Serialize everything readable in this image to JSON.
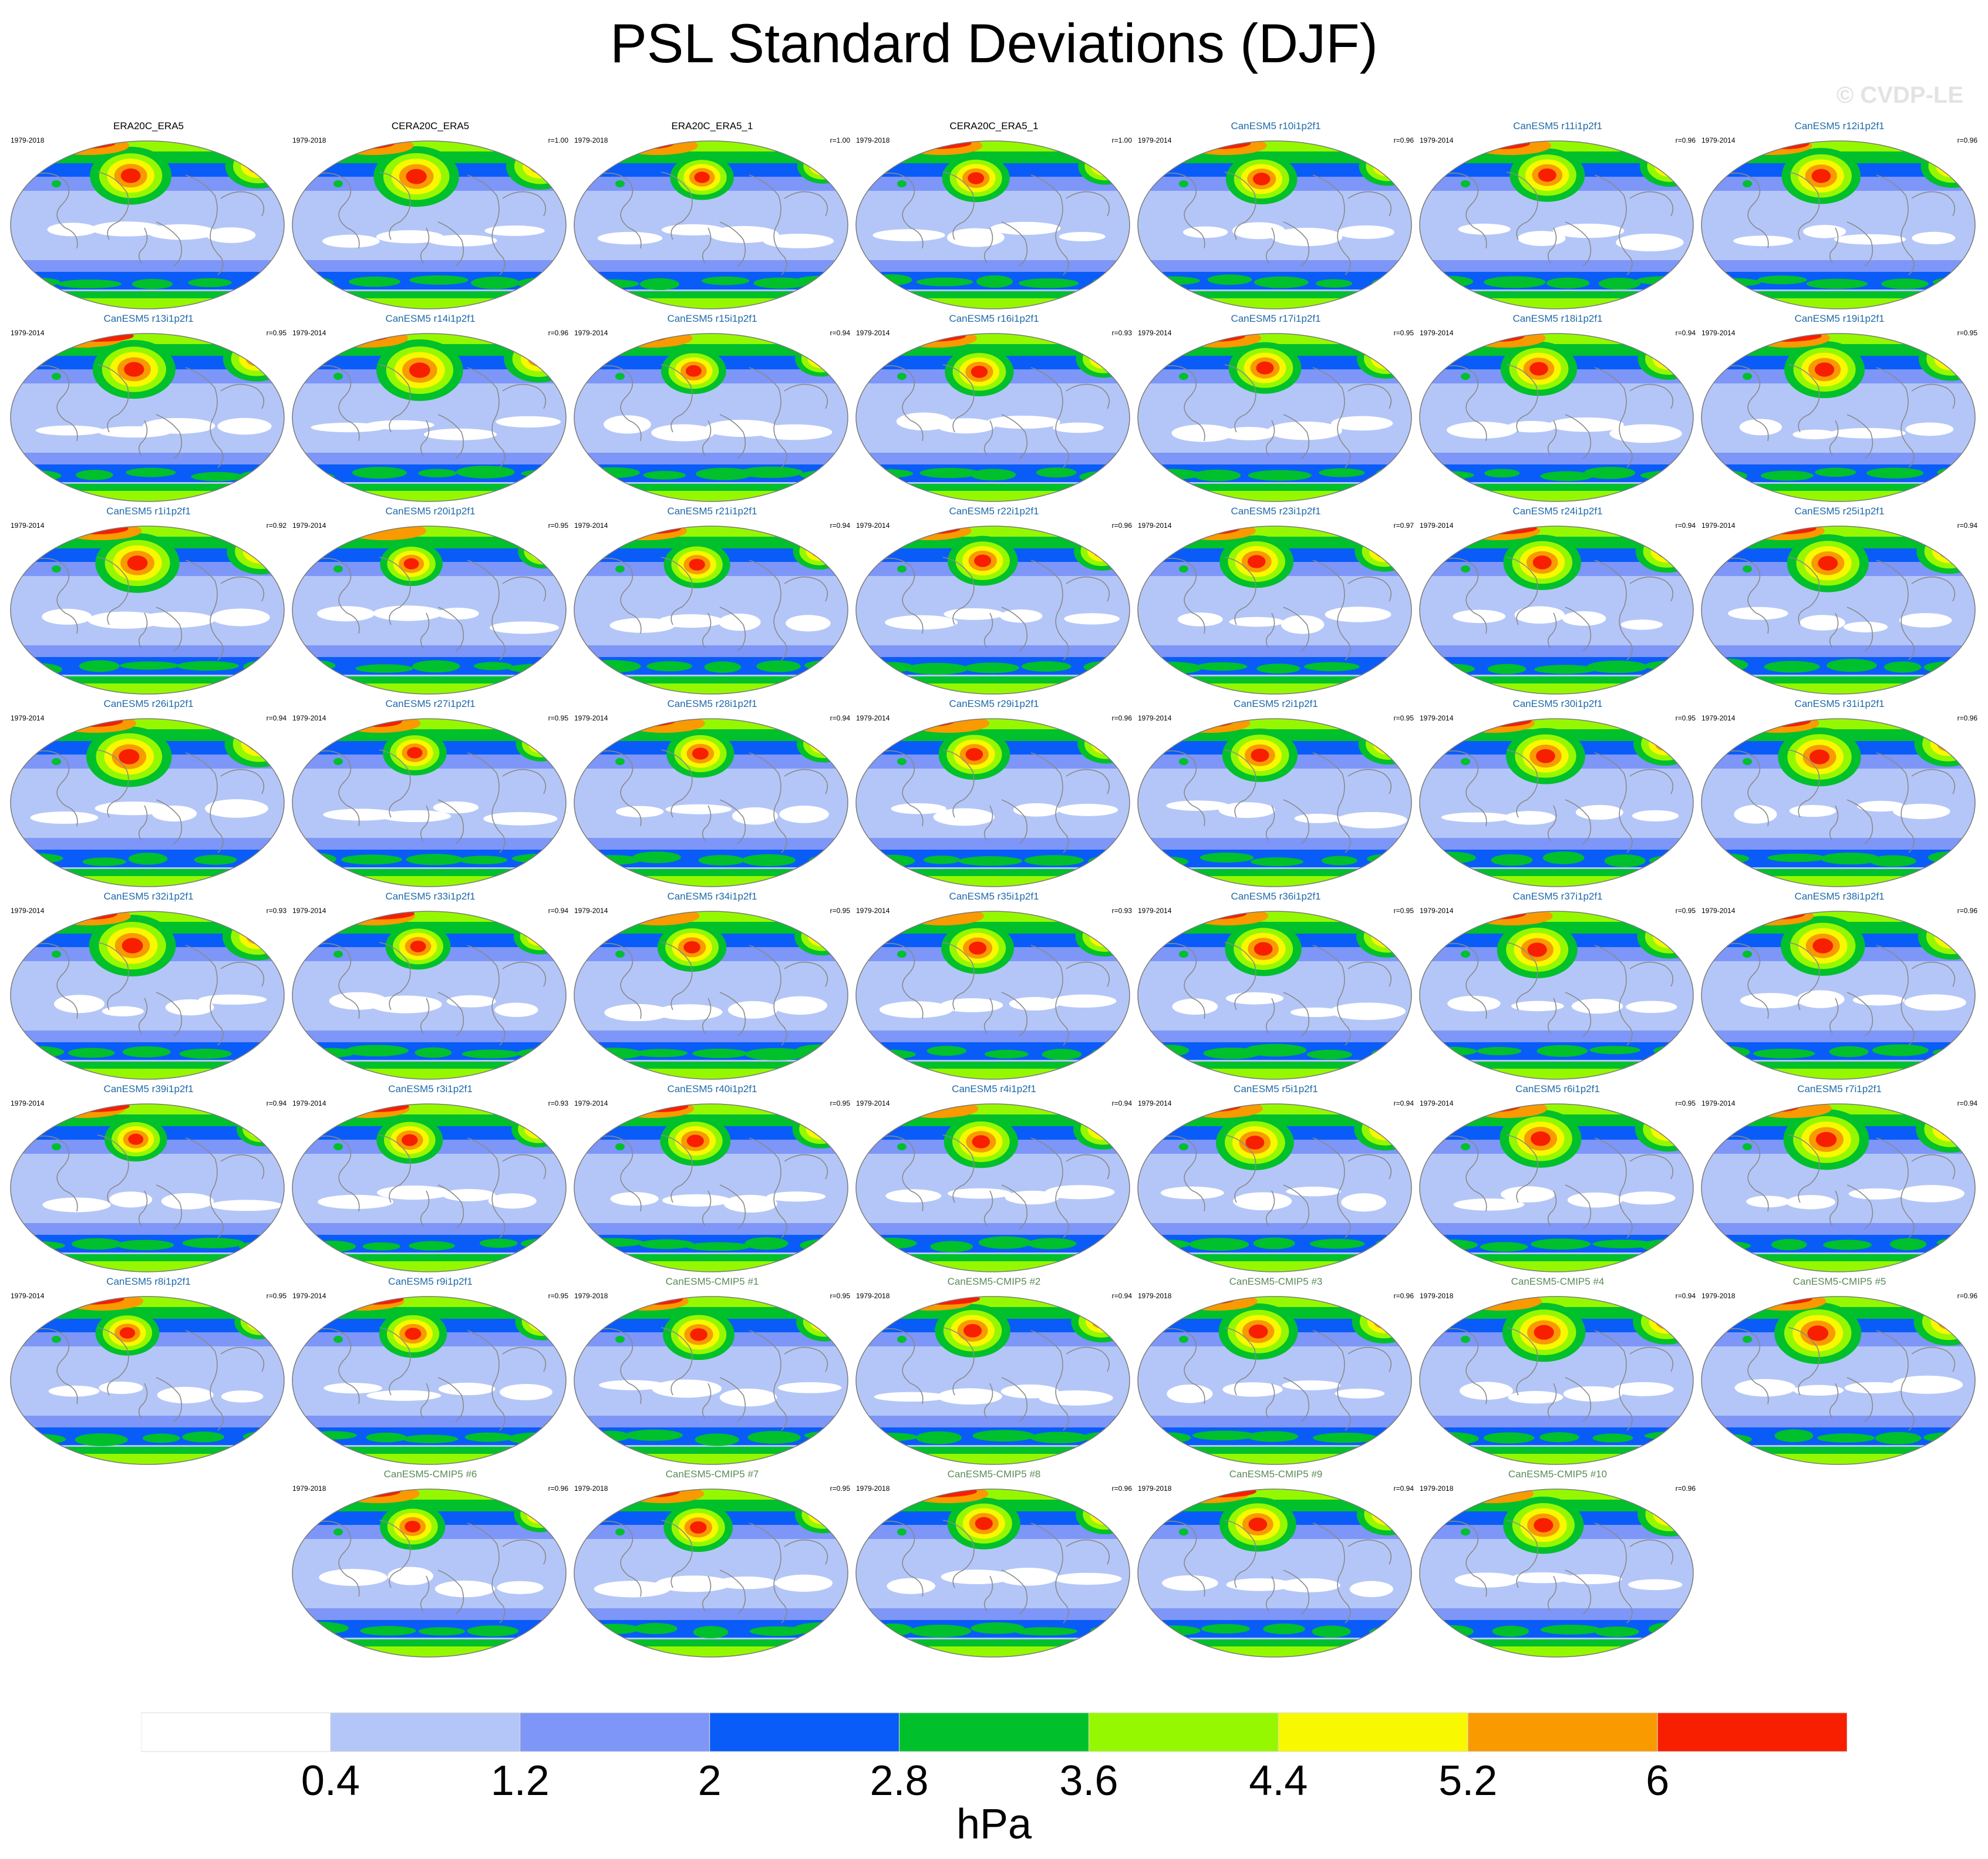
{
  "title": "PSL Standard Deviations (DJF)",
  "watermark": "© CVDP-LE",
  "colors": {
    "obs_title": "#000000",
    "le_title": "#1f6aa8",
    "cmip5_title": "#5a8a5a",
    "levels": [
      "#ffffff",
      "#b4c6f8",
      "#7d96f8",
      "#0a5cf8",
      "#00c02c",
      "#96f800",
      "#f8f800",
      "#f89a00",
      "#f81e00"
    ],
    "coast": "#8a8a8a"
  },
  "panels": [
    {
      "name": "ERA20C_ERA5",
      "years": "1979-2018",
      "r": "",
      "group": "obs"
    },
    {
      "name": "CERA20C_ERA5",
      "years": "1979-2018",
      "r": "r=1.00",
      "group": "obs"
    },
    {
      "name": "ERA20C_ERA5_1",
      "years": "1979-2018",
      "r": "r=1.00",
      "group": "obs"
    },
    {
      "name": "CERA20C_ERA5_1",
      "years": "1979-2018",
      "r": "r=1.00",
      "group": "obs"
    },
    {
      "name": "CanESM5 r10i1p2f1",
      "years": "1979-2014",
      "r": "r=0.96",
      "group": "le"
    },
    {
      "name": "CanESM5 r11i1p2f1",
      "years": "1979-2014",
      "r": "r=0.96",
      "group": "le"
    },
    {
      "name": "CanESM5 r12i1p2f1",
      "years": "1979-2014",
      "r": "r=0.96",
      "group": "le"
    },
    {
      "name": "CanESM5 r13i1p2f1",
      "years": "1979-2014",
      "r": "r=0.95",
      "group": "le"
    },
    {
      "name": "CanESM5 r14i1p2f1",
      "years": "1979-2014",
      "r": "r=0.96",
      "group": "le"
    },
    {
      "name": "CanESM5 r15i1p2f1",
      "years": "1979-2014",
      "r": "r=0.94",
      "group": "le"
    },
    {
      "name": "CanESM5 r16i1p2f1",
      "years": "1979-2014",
      "r": "r=0.93",
      "group": "le"
    },
    {
      "name": "CanESM5 r17i1p2f1",
      "years": "1979-2014",
      "r": "r=0.95",
      "group": "le"
    },
    {
      "name": "CanESM5 r18i1p2f1",
      "years": "1979-2014",
      "r": "r=0.94",
      "group": "le"
    },
    {
      "name": "CanESM5 r19i1p2f1",
      "years": "1979-2014",
      "r": "r=0.95",
      "group": "le"
    },
    {
      "name": "CanESM5 r1i1p2f1",
      "years": "1979-2014",
      "r": "r=0.92",
      "group": "le"
    },
    {
      "name": "CanESM5 r20i1p2f1",
      "years": "1979-2014",
      "r": "r=0.95",
      "group": "le"
    },
    {
      "name": "CanESM5 r21i1p2f1",
      "years": "1979-2014",
      "r": "r=0.94",
      "group": "le"
    },
    {
      "name": "CanESM5 r22i1p2f1",
      "years": "1979-2014",
      "r": "r=0.96",
      "group": "le"
    },
    {
      "name": "CanESM5 r23i1p2f1",
      "years": "1979-2014",
      "r": "r=0.97",
      "group": "le"
    },
    {
      "name": "CanESM5 r24i1p2f1",
      "years": "1979-2014",
      "r": "r=0.94",
      "group": "le"
    },
    {
      "name": "CanESM5 r25i1p2f1",
      "years": "1979-2014",
      "r": "r=0.94",
      "group": "le"
    },
    {
      "name": "CanESM5 r26i1p2f1",
      "years": "1979-2014",
      "r": "r=0.94",
      "group": "le"
    },
    {
      "name": "CanESM5 r27i1p2f1",
      "years": "1979-2014",
      "r": "r=0.95",
      "group": "le"
    },
    {
      "name": "CanESM5 r28i1p2f1",
      "years": "1979-2014",
      "r": "r=0.94",
      "group": "le"
    },
    {
      "name": "CanESM5 r29i1p2f1",
      "years": "1979-2014",
      "r": "r=0.96",
      "group": "le"
    },
    {
      "name": "CanESM5 r2i1p2f1",
      "years": "1979-2014",
      "r": "r=0.95",
      "group": "le"
    },
    {
      "name": "CanESM5 r30i1p2f1",
      "years": "1979-2014",
      "r": "r=0.95",
      "group": "le"
    },
    {
      "name": "CanESM5 r31i1p2f1",
      "years": "1979-2014",
      "r": "r=0.96",
      "group": "le"
    },
    {
      "name": "CanESM5 r32i1p2f1",
      "years": "1979-2014",
      "r": "r=0.93",
      "group": "le"
    },
    {
      "name": "CanESM5 r33i1p2f1",
      "years": "1979-2014",
      "r": "r=0.94",
      "group": "le"
    },
    {
      "name": "CanESM5 r34i1p2f1",
      "years": "1979-2014",
      "r": "r=0.95",
      "group": "le"
    },
    {
      "name": "CanESM5 r35i1p2f1",
      "years": "1979-2014",
      "r": "r=0.93",
      "group": "le"
    },
    {
      "name": "CanESM5 r36i1p2f1",
      "years": "1979-2014",
      "r": "r=0.95",
      "group": "le"
    },
    {
      "name": "CanESM5 r37i1p2f1",
      "years": "1979-2014",
      "r": "r=0.95",
      "group": "le"
    },
    {
      "name": "CanESM5 r38i1p2f1",
      "years": "1979-2014",
      "r": "r=0.96",
      "group": "le"
    },
    {
      "name": "CanESM5 r39i1p2f1",
      "years": "1979-2014",
      "r": "r=0.94",
      "group": "le"
    },
    {
      "name": "CanESM5 r3i1p2f1",
      "years": "1979-2014",
      "r": "r=0.93",
      "group": "le"
    },
    {
      "name": "CanESM5 r40i1p2f1",
      "years": "1979-2014",
      "r": "r=0.95",
      "group": "le"
    },
    {
      "name": "CanESM5 r4i1p2f1",
      "years": "1979-2014",
      "r": "r=0.94",
      "group": "le"
    },
    {
      "name": "CanESM5 r5i1p2f1",
      "years": "1979-2014",
      "r": "r=0.94",
      "group": "le"
    },
    {
      "name": "CanESM5 r6i1p2f1",
      "years": "1979-2014",
      "r": "r=0.95",
      "group": "le"
    },
    {
      "name": "CanESM5 r7i1p2f1",
      "years": "1979-2014",
      "r": "r=0.94",
      "group": "le"
    },
    {
      "name": "CanESM5 r8i1p2f1",
      "years": "1979-2014",
      "r": "r=0.95",
      "group": "le"
    },
    {
      "name": "CanESM5 r9i1p2f1",
      "years": "1979-2014",
      "r": "r=0.95",
      "group": "le"
    },
    {
      "name": "CanESM5-CMIP5 #1",
      "years": "1979-2018",
      "r": "r=0.95",
      "group": "cmip5"
    },
    {
      "name": "CanESM5-CMIP5 #2",
      "years": "1979-2018",
      "r": "r=0.94",
      "group": "cmip5"
    },
    {
      "name": "CanESM5-CMIP5 #3",
      "years": "1979-2018",
      "r": "r=0.96",
      "group": "cmip5"
    },
    {
      "name": "CanESM5-CMIP5 #4",
      "years": "1979-2018",
      "r": "r=0.94",
      "group": "cmip5"
    },
    {
      "name": "CanESM5-CMIP5 #5",
      "years": "1979-2018",
      "r": "r=0.96",
      "group": "cmip5"
    },
    {
      "name": "CanESM5-CMIP5 #6",
      "years": "1979-2018",
      "r": "r=0.96",
      "group": "cmip5"
    },
    {
      "name": "CanESM5-CMIP5 #7",
      "years": "1979-2018",
      "r": "r=0.95",
      "group": "cmip5"
    },
    {
      "name": "CanESM5-CMIP5 #8",
      "years": "1979-2018",
      "r": "r=0.96",
      "group": "cmip5"
    },
    {
      "name": "CanESM5-CMIP5 #9",
      "years": "1979-2018",
      "r": "r=0.94",
      "group": "cmip5"
    },
    {
      "name": "CanESM5-CMIP5 #10",
      "years": "1979-2018",
      "r": "r=0.96",
      "group": "cmip5"
    }
  ],
  "colorbar": {
    "labels": [
      "0.4",
      "1.2",
      "2",
      "2.8",
      "3.6",
      "4.4",
      "5.2",
      "6"
    ],
    "units": "hPa"
  }
}
